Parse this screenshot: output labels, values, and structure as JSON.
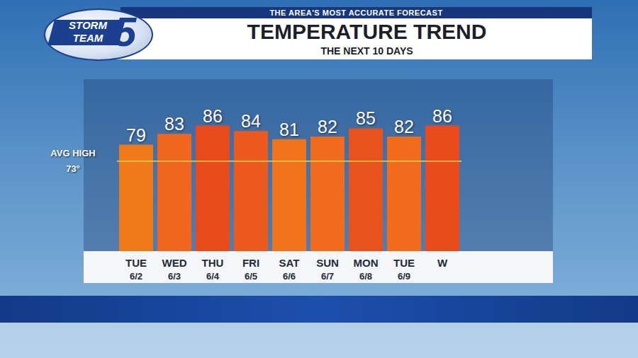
{
  "header": {
    "tagline": "THE AREA'S MOST ACCURATE FORECAST",
    "logo_text": "STORM TEAM",
    "logo_number": "5"
  },
  "chart_data": {
    "type": "bar",
    "title": "TEMPERATURE TREND",
    "subtitle": "THE NEXT 10 DAYS",
    "categories": [
      "TUE",
      "WED",
      "THU",
      "FRI",
      "SAT",
      "SUN",
      "MON",
      "TUE",
      "W"
    ],
    "dates": [
      "6/2",
      "6/3",
      "6/4",
      "6/5",
      "6/6",
      "6/7",
      "6/8",
      "6/9",
      null
    ],
    "values": [
      79,
      83,
      86,
      84,
      81,
      82,
      85,
      82,
      86
    ],
    "colors": [
      "#f07a1a",
      "#f0661e",
      "#e84a1c",
      "#ec5a1e",
      "#f0721c",
      "#f06c1c",
      "#e8521c",
      "#f06c1c",
      "#e84a1c"
    ],
    "ylim": [
      40,
      103
    ],
    "tick_labels": false,
    "grid": false,
    "data_labels": true,
    "reference_line": {
      "label": "AVG HIGH",
      "value": 73,
      "value_label": "73°"
    }
  }
}
